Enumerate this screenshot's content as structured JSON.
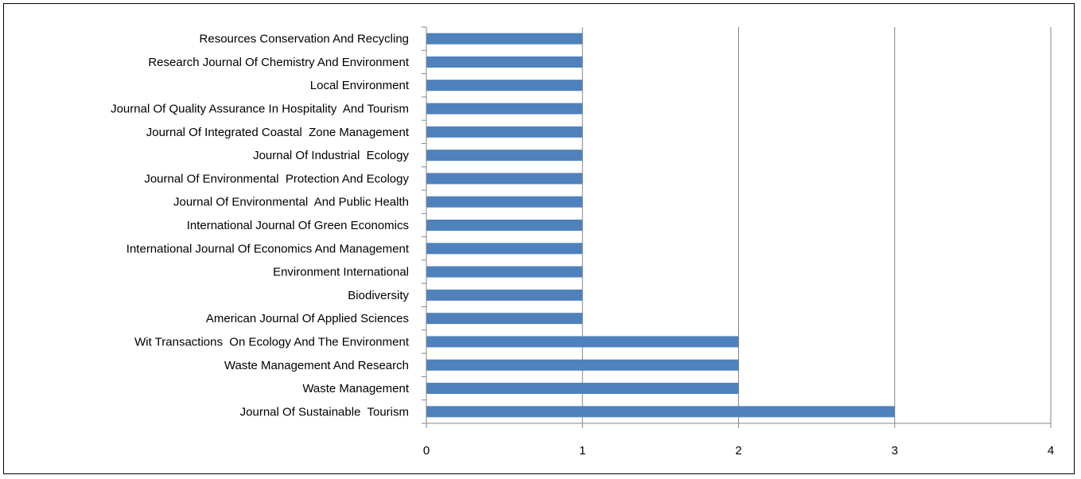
{
  "chart_data": {
    "type": "bar",
    "orientation": "horizontal",
    "categories": [
      "Resources Conservation And Recycling",
      "Research Journal Of Chemistry And Environment",
      "Local Environment",
      "Journal Of Quality Assurance In Hospitality  And Tourism",
      "Journal Of Integrated Coastal  Zone Management",
      "Journal Of Industrial  Ecology",
      "Journal Of Environmental  Protection And Ecology",
      "Journal Of Environmental  And Public Health",
      "International Journal Of Green Economics",
      "International Journal Of Economics And Management",
      "Environment International",
      "Biodiversity",
      "American Journal Of Applied Sciences",
      "Wit Transactions  On Ecology And The Environment",
      "Waste Management And Research",
      "Waste Management",
      "Journal Of Sustainable  Tourism"
    ],
    "values": [
      1,
      1,
      1,
      1,
      1,
      1,
      1,
      1,
      1,
      1,
      1,
      1,
      1,
      2,
      2,
      2,
      3
    ],
    "xlim": [
      0,
      4
    ],
    "xticks": [
      "0",
      "1",
      "2",
      "3",
      "4"
    ],
    "grid": "vertical",
    "bar_color": "#4F81BD",
    "title": "",
    "xlabel": "",
    "ylabel": ""
  }
}
